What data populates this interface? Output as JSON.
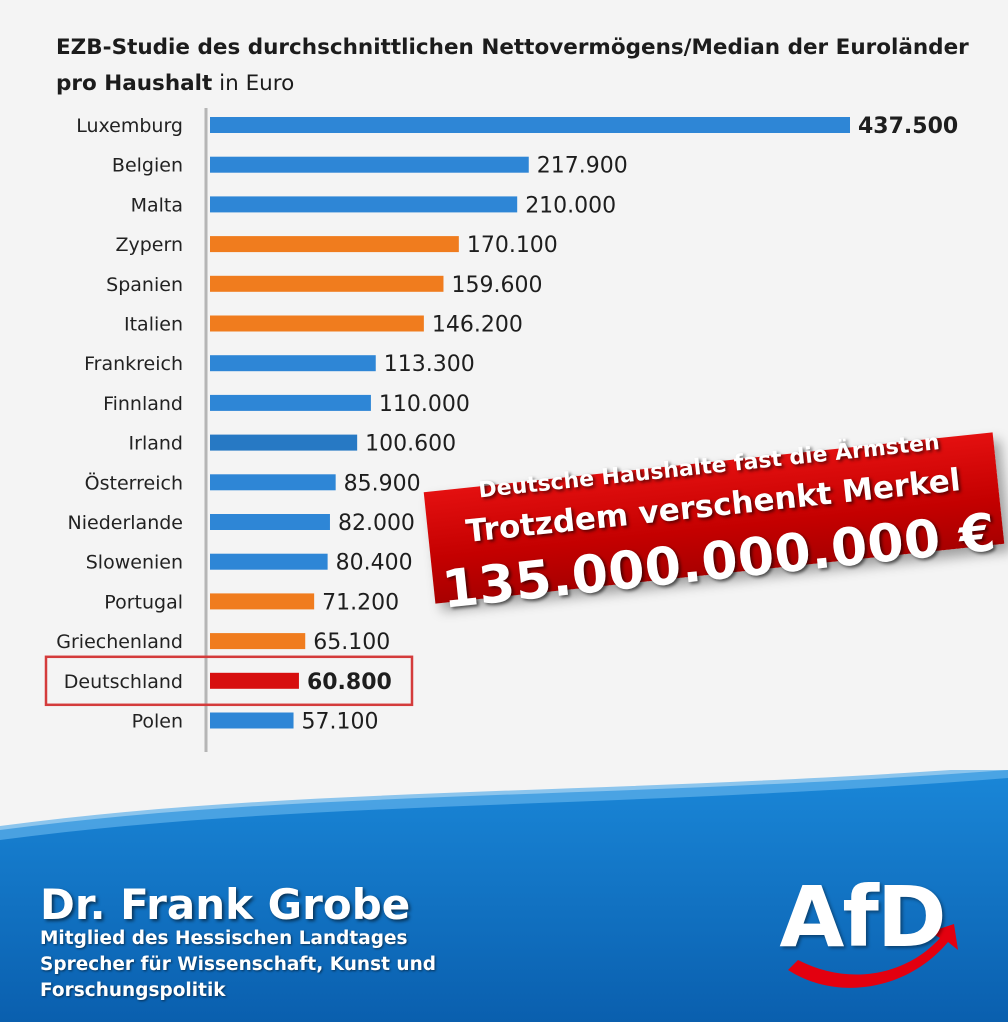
{
  "title": {
    "bold": "EZB-Studie des durchschnittlichen Nettovermögens/Median der Euroländer pro Haushalt",
    "normal": " in Euro"
  },
  "chart_data": {
    "type": "bar",
    "orientation": "horizontal",
    "categories": [
      "Luxemburg",
      "Belgien",
      "Malta",
      "Zypern",
      "Spanien",
      "Italien",
      "Frankreich",
      "Finnland",
      "Irland",
      "Österreich",
      "Niederlande",
      "Slowenien",
      "Portugal",
      "Griechenland",
      "Deutschland",
      "Polen"
    ],
    "values": [
      437500,
      217900,
      210000,
      170100,
      159600,
      146200,
      113300,
      110000,
      100600,
      85900,
      82000,
      80400,
      71200,
      65100,
      60800,
      57100
    ],
    "value_labels": [
      "437.500",
      "217.900",
      "210.000",
      "170.100",
      "159.600",
      "146.200",
      "113.300",
      "110.000",
      "100.600",
      "85.900",
      "82.000",
      "80.400",
      "71.200",
      "65.100",
      "60.800",
      "57.100"
    ],
    "bar_colors": [
      "#2e86d6",
      "#2e86d6",
      "#2e86d6",
      "#f07c1e",
      "#f07c1e",
      "#f07c1e",
      "#2e86d6",
      "#2e86d6",
      "#2779c4",
      "#2e86d6",
      "#2e86d6",
      "#2e86d6",
      "#f07c1e",
      "#f07c1e",
      "#d70e0e",
      "#2e86d6"
    ],
    "bold_labels": [
      "Luxemburg",
      "Deutschland"
    ],
    "highlight": "Deutschland",
    "xlim": [
      0,
      437500
    ],
    "axis_line_color": "#b5b5b5",
    "highlight_box_color": "#d43b3b"
  },
  "banner": {
    "line1": "Deutsche Haushalte fast die Ärmsten",
    "line2": "Trotzdem verschenkt Merkel",
    "line3": "135.000.000.000 €",
    "color": "#d30000"
  },
  "footer": {
    "name": "Dr. Frank Grobe",
    "line1": "Mitglied des Hessischen Landtages",
    "line2": "Sprecher für Wissenschaft, Kunst und",
    "line3": "Forschungspolitik",
    "color": "#0a6fc2"
  },
  "logo": {
    "text": "AfD",
    "swoosh_color": "#e3000f"
  }
}
